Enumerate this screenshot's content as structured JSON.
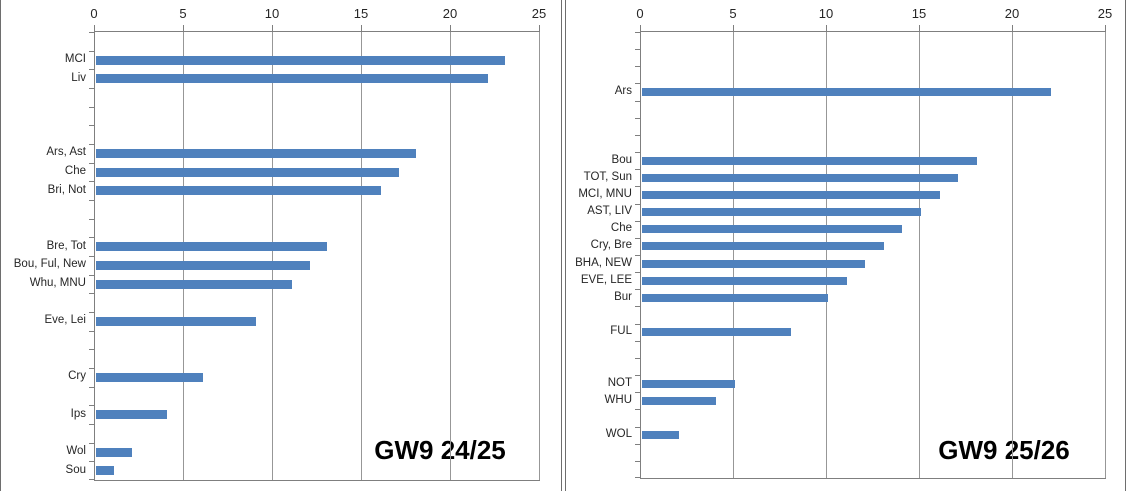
{
  "chart_data": [
    {
      "type": "bar",
      "orientation": "horizontal",
      "title": "GW9 24/25",
      "xlim": [
        0,
        25
      ],
      "x_ticks": [
        0,
        5,
        10,
        15,
        20,
        25
      ],
      "x_axis_position": "top",
      "grid": true,
      "legend": null,
      "bar_color": "#4F81BD",
      "rows": [
        {
          "label": "",
          "value": null
        },
        {
          "label": "MCI",
          "value": 23
        },
        {
          "label": "Liv",
          "value": 22
        },
        {
          "label": "",
          "value": null
        },
        {
          "label": "",
          "value": null
        },
        {
          "label": "",
          "value": null
        },
        {
          "label": "Ars, Ast",
          "value": 18
        },
        {
          "label": "Che",
          "value": 17
        },
        {
          "label": "Bri, Not",
          "value": 16
        },
        {
          "label": "",
          "value": null
        },
        {
          "label": "",
          "value": null
        },
        {
          "label": "Bre, Tot",
          "value": 13
        },
        {
          "label": "Bou, Ful, New",
          "value": 12
        },
        {
          "label": "Whu, MNU",
          "value": 11
        },
        {
          "label": "",
          "value": null
        },
        {
          "label": "Eve, Lei",
          "value": 9
        },
        {
          "label": "",
          "value": null
        },
        {
          "label": "",
          "value": null
        },
        {
          "label": "Cry",
          "value": 6
        },
        {
          "label": "",
          "value": null
        },
        {
          "label": "Ips",
          "value": 4
        },
        {
          "label": "",
          "value": null
        },
        {
          "label": "Wol",
          "value": 2
        },
        {
          "label": "Sou",
          "value": 1
        }
      ]
    },
    {
      "type": "bar",
      "orientation": "horizontal",
      "title": "GW9 25/26",
      "xlim": [
        0,
        25
      ],
      "x_ticks": [
        0,
        5,
        10,
        15,
        20,
        25
      ],
      "x_axis_position": "top",
      "grid": true,
      "legend": null,
      "bar_color": "#4F81BD",
      "rows": [
        {
          "label": "",
          "value": null
        },
        {
          "label": "",
          "value": null
        },
        {
          "label": "",
          "value": null
        },
        {
          "label": "Ars",
          "value": 22
        },
        {
          "label": "",
          "value": null
        },
        {
          "label": "",
          "value": null
        },
        {
          "label": "",
          "value": null
        },
        {
          "label": "Bou",
          "value": 18
        },
        {
          "label": "TOT, Sun",
          "value": 17
        },
        {
          "label": "MCI, MNU",
          "value": 16
        },
        {
          "label": "AST, LIV",
          "value": 15
        },
        {
          "label": "Che",
          "value": 14
        },
        {
          "label": "Cry, Bre",
          "value": 13
        },
        {
          "label": "BHA, NEW",
          "value": 12
        },
        {
          "label": "EVE, LEE",
          "value": 11
        },
        {
          "label": "Bur",
          "value": 10
        },
        {
          "label": "",
          "value": null
        },
        {
          "label": "FUL",
          "value": 8
        },
        {
          "label": "",
          "value": null
        },
        {
          "label": "",
          "value": null
        },
        {
          "label": "NOT",
          "value": 5
        },
        {
          "label": "WHU",
          "value": 4
        },
        {
          "label": "",
          "value": null
        },
        {
          "label": "WOL",
          "value": 2
        },
        {
          "label": "",
          "value": null
        },
        {
          "label": "",
          "value": null
        }
      ]
    }
  ]
}
